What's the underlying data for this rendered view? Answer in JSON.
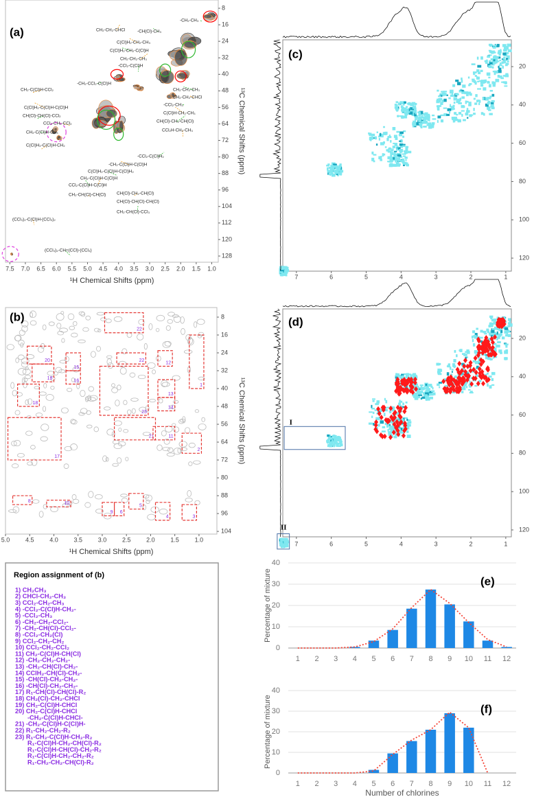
{
  "panels": [
    {
      "label": "(a)",
      "x_label": "¹H Chemical Shifts (ppm)",
      "y_label": "¹³C Chemical Shifts (ppm)",
      "xlim": [
        7.64,
        0.79
      ],
      "ylim": [
        4,
        131
      ],
      "xticks": [
        7.5,
        {
          "value": 7,
          "label": "7.0"
        },
        6.5,
        {
          "value": 6,
          "label": "6.0"
        },
        5.5,
        {
          "value": 5,
          "label": "5.0"
        },
        4.5,
        {
          "value": 4,
          "label": "4.0"
        },
        3.5,
        {
          "value": 3,
          "label": "3.0"
        },
        2.5,
        {
          "value": 2,
          "label": "2.0"
        },
        1.5,
        {
          "value": 1,
          "label": "1.0"
        }
      ],
      "yticks": [
        8,
        16,
        24,
        32,
        40,
        48,
        56,
        64,
        72,
        80,
        88,
        96,
        104,
        112,
        120,
        128
      ],
      "annotations": [
        "-CH₂-CH₃",
        "CH₂-CH₂-CHCl",
        "-CH(Cl)-CH₃",
        "C(Cl)H₂-CH₂-CH₃",
        "C(Cl)H₂-CH₂-C(Cl)H",
        "CH₂-CH₂-CH₃",
        "-CCl₂-C(Cl)H",
        "CH₂-C(Cl)H-CCl₂",
        "-CH₂-CCl₂-C(Cl)H",
        "C(Cl)H₂-C(Cl)H-C(Cl)H",
        "CH(Cl)-CH(Cl)-CCl₂",
        "CCl₂-CH₂-CCl₂",
        "CH₂-C(Cl)H-CH₃",
        "C(Cl)H₂-C(Cl)H-CH₂",
        "CH₂-CH₂-CH₃",
        "CH₂-CH₂-CHCl",
        "-CCl₂-CH₃",
        "C(Cl)H-CH₂-CH₃",
        "CH(Cl)-CH₂-CH(Cl)",
        "CCl₂H-CH₂-CH₃",
        "-CCl₂-C(Cl)H₂",
        "-CH₂-C(Cl)H-C(Cl)H",
        "C(Cl)H₂-C(Cl)H-C(Cl)H₂",
        "CH₂-C(Cl)H-C(Cl)H",
        "CCl₂-C(Cl)H-C(Cl)H",
        "CH(Cl)-CH₂-CH(Cl)",
        "CH(Cl)-CH(Cl)-CH(Cl)",
        "CH₂-CH(Cl)-CH(Cl)",
        "CH₂-CH(Cl)-CCl₃",
        "(CCl₃)₂-C(Cl)H-(CCl₃)₂",
        "(CCl₃)₂-CH=(CCl)-(CCl₃)"
      ]
    },
    {
      "label": "(b)",
      "x_label": "¹H Chemical Shifts (ppm)",
      "y_label": "¹³C Chemical Shifts (ppm)",
      "xlim": [
        5.0,
        0.63
      ],
      "ylim": [
        3.7,
        105.2
      ],
      "xticks": [
        {
          "value": 5,
          "label": "5.0"
        },
        4.5,
        {
          "value": 4,
          "label": "4.0"
        },
        3.5,
        {
          "value": 3,
          "label": "3.0"
        },
        2.5,
        {
          "value": 2,
          "label": "2.0"
        },
        1.5,
        {
          "value": 1,
          "label": "1.0"
        }
      ],
      "yticks": [
        8,
        16,
        24,
        32,
        40,
        48,
        56,
        64,
        72,
        80,
        88,
        96,
        104
      ],
      "region_labels": [
        "20",
        "15",
        "19",
        "16",
        "18",
        "17",
        "22",
        "22",
        "12",
        "1",
        "13",
        "14",
        "23",
        "21",
        "11",
        "2",
        "8",
        "10",
        "9",
        "6",
        "5",
        "4",
        "3"
      ]
    },
    {
      "label": "(c)",
      "xlim": [
        7.39,
        0.84
      ],
      "ylim": [
        6.0,
        126.8
      ],
      "xticks": [
        7,
        6,
        5,
        4,
        3,
        2,
        1
      ],
      "yticks": [
        20,
        40,
        60,
        80,
        100,
        120
      ]
    },
    {
      "label": "(d)",
      "xlim": [
        7.39,
        0.84
      ],
      "ylim": [
        4.6,
        123.6
      ],
      "xticks": [
        7,
        6,
        5,
        4,
        3,
        2,
        1
      ],
      "yticks": [
        20,
        40,
        60,
        80,
        100,
        120
      ],
      "region_labels": [
        "I",
        "II"
      ]
    }
  ],
  "region_assignment": {
    "title": "Region assignment of (b)",
    "items": [
      [
        "1) CH₂CH₃"
      ],
      [
        "2) CHCl-CH₂-CH₃"
      ],
      [
        "3) CCl₂-CH₂-CH₃"
      ],
      [
        "4) -CCl₂-C(Cl)H-CH₂-"
      ],
      [
        "5) -CCl₂-CH₃"
      ],
      [
        "6) -CH₂-CH₂-CCl₂-"
      ],
      [
        "7) -CH₂-CH(Cl)-CCl₂-"
      ],
      [
        "8) -CCl₂-CH₂(Cl)"
      ],
      [
        "9) CCl₂-CH₂-CH₂"
      ],
      [
        "10) CCl₂-CH₂-CCl₂"
      ],
      [
        "11) CH₂-C(Cl)H-CH(Cl)"
      ],
      [
        "12) -CH₂-CH₂-CH₂-"
      ],
      [
        "13) -CH₂-CH(Cl)-CH₂-"
      ],
      [
        "14) CClH₂-CH(Cl)-CH₂-"
      ],
      [
        "15) -CH(Cl)-CH₂-CH₂-"
      ],
      [
        "16) -CH(Cl)-CH₂-CH₂-"
      ],
      [
        "17) R₁-CH(Cl)-CH(Cl)-R₂"
      ],
      [
        "18) CH₂(Cl)-CH₂-CHCl"
      ],
      [
        "19) CH₂-C(Cl)H-CHCl"
      ],
      [
        "20) CH₂-C(Cl)H-CHCl",
        "-CH₂-C(Cl)H-CHCl-"
      ],
      [
        "21) -CH₂-C(Cl)H-C(Cl)H-"
      ],
      [
        "22) R₁-CH₂-CH₂-R₂"
      ],
      [
        "23) R₁-CH₂-C(Cl)H-CH₂-R₂",
        "R₁-C(Cl)H-CH₂-CH(Cl)-R₂",
        "R₁-C(Cl)H-CH(Cl)-CH₂-R₂",
        "R₁-C(Cl)H-CH₂-CH₂-R₂",
        "R₁-CH₂-CH₂-CH(Cl)-R₂"
      ]
    ]
  },
  "chart_data": [
    {
      "type": "bar",
      "label": "(e)",
      "y_label": "Percentage of mixture",
      "categories": [
        "1",
        "2",
        "3",
        "4",
        "5",
        "6",
        "7",
        "8",
        "9",
        "10",
        "11",
        "12"
      ],
      "series": [
        {
          "color": "#1e88e5",
          "values": [
            0,
            0,
            0,
            0.5,
            3.5,
            8.5,
            18.5,
            27.5,
            20.5,
            12.5,
            3.5,
            0.5
          ]
        },
        {
          "color": "#f44336",
          "style": "dotted",
          "values": [
            0,
            0,
            0,
            0.5,
            3,
            9,
            19,
            27.5,
            21,
            12,
            4,
            0.5
          ]
        }
      ],
      "ylim": [
        0,
        40
      ],
      "yticks": [
        0,
        10,
        20,
        30,
        40
      ],
      "grid": true
    },
    {
      "type": "bar",
      "label": "(f)",
      "y_label": "Percentage of mixture",
      "x_label": "Number of chlorines",
      "categories": [
        "1",
        "2",
        "3",
        "4",
        "5",
        "6",
        "7",
        "8",
        "9",
        "10",
        "11",
        "12"
      ],
      "series": [
        {
          "color": "#1e88e5",
          "values": [
            0,
            0,
            0,
            0,
            1.5,
            9.5,
            15.5,
            21,
            29,
            22,
            0,
            0
          ]
        },
        {
          "color": "#f44336",
          "style": "dotted",
          "values": [
            0,
            0,
            0,
            0,
            1,
            9,
            16,
            21,
            29.5,
            22,
            0,
            null
          ]
        }
      ],
      "ylim": [
        0,
        40
      ],
      "yticks": [
        0,
        10,
        20,
        30,
        40
      ],
      "grid": true
    }
  ]
}
